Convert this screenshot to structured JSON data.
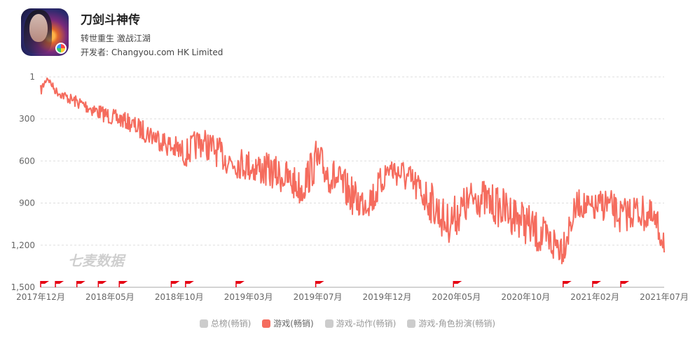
{
  "app": {
    "title": "刀剑斗神传",
    "subtitle": "转世重生 激战江湖",
    "developer_label": "开发者:",
    "developer": "Changyou.com HK Limited"
  },
  "colors": {
    "series": "#f56c5e",
    "flag": "#e60012",
    "grid": "#dddddd",
    "axis": "#999999",
    "inactive": "#cccccc"
  },
  "watermark": "七麦数据",
  "legend": [
    {
      "label": "总榜(畅销)",
      "active": false
    },
    {
      "label": "游戏(畅销)",
      "active": true
    },
    {
      "label": "游戏-动作(畅销)",
      "active": false
    },
    {
      "label": "游戏-角色扮演(畅销)",
      "active": false
    }
  ],
  "chart_data": {
    "type": "line",
    "y_reversed": true,
    "ylim": [
      1,
      1500
    ],
    "y_ticks": [
      1,
      300,
      600,
      900,
      1200,
      1500
    ],
    "y_tick_labels": [
      "1",
      "300",
      "600",
      "900",
      "1,200",
      "1,500"
    ],
    "x_range": [
      "2017-12-01",
      "2021-07-01"
    ],
    "x_tick_labels": [
      "2017年12月",
      "2018年05月",
      "2018年10月",
      "2019年03月",
      "2019年07月",
      "2019年12月",
      "2020年05月",
      "2020年10月",
      "2021年02月",
      "2021年07月"
    ],
    "series": [
      {
        "name": "游戏(畅销)",
        "x": [
          "2017-12-01",
          "2017-12-15",
          "2018-01-01",
          "2018-02-01",
          "2018-03-01",
          "2018-04-01",
          "2018-05-01",
          "2018-06-01",
          "2018-07-01",
          "2018-08-01",
          "2018-09-01",
          "2018-10-01",
          "2018-11-01",
          "2018-12-01",
          "2019-01-01",
          "2019-02-01",
          "2019-03-01",
          "2019-04-01",
          "2019-05-01",
          "2019-06-01",
          "2019-07-01",
          "2019-08-01",
          "2019-09-01",
          "2019-10-01",
          "2019-11-01",
          "2019-12-01",
          "2020-01-01",
          "2020-02-01",
          "2020-03-01",
          "2020-04-01",
          "2020-05-01",
          "2020-06-01",
          "2020-07-01",
          "2020-08-01",
          "2020-09-01",
          "2020-10-01",
          "2020-11-01",
          "2020-12-01",
          "2021-01-01",
          "2021-02-01",
          "2021-03-01",
          "2021-04-01",
          "2021-05-01",
          "2021-06-01",
          "2021-07-01"
        ],
        "values": [
          100,
          5,
          100,
          160,
          200,
          250,
          290,
          320,
          380,
          430,
          500,
          550,
          460,
          520,
          600,
          620,
          650,
          680,
          720,
          800,
          600,
          700,
          800,
          900,
          850,
          650,
          700,
          800,
          900,
          1050,
          950,
          850,
          900,
          950,
          1000,
          1100,
          1180,
          1200,
          900,
          950,
          900,
          1000,
          950,
          1000,
          1150
        ],
        "spread": [
          80,
          40,
          60,
          80,
          100,
          110,
          120,
          120,
          150,
          160,
          180,
          200,
          220,
          220,
          220,
          230,
          250,
          250,
          250,
          260,
          300,
          280,
          280,
          250,
          260,
          200,
          230,
          250,
          300,
          300,
          300,
          280,
          280,
          300,
          300,
          300,
          300,
          280,
          200,
          200,
          250,
          250,
          250,
          250,
          250
        ]
      }
    ],
    "event_flags": [
      "2017-12-01",
      "2018-01-01",
      "2018-02-15",
      "2018-04-01",
      "2018-05-15",
      "2018-09-01",
      "2018-10-01",
      "2019-01-15",
      "2019-07-01",
      "2020-04-15",
      "2020-12-01",
      "2021-02-01",
      "2021-04-01"
    ]
  }
}
